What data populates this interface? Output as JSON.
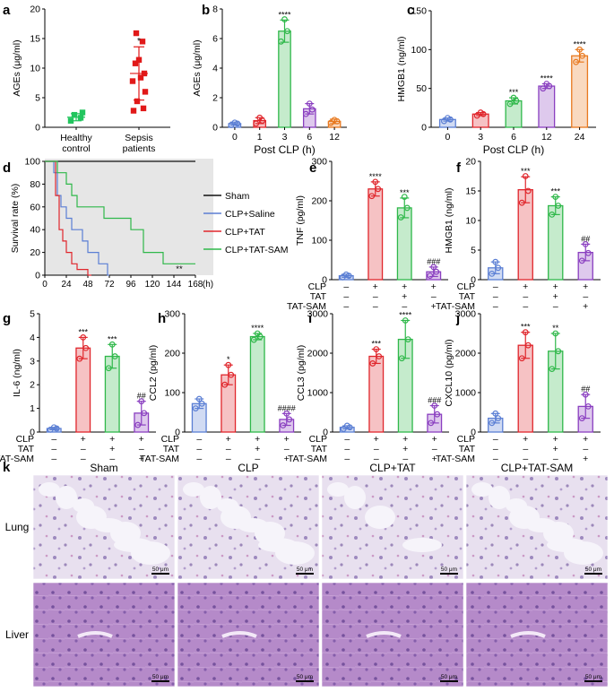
{
  "colors": {
    "blue": "#5b7fd4",
    "red": "#e0262c",
    "green": "#2fb84a",
    "purple": "#8a3fc0",
    "orange": "#e8791f",
    "green_scatter": "#22c55e",
    "red_scatter": "#e11919",
    "gray_panel": "#e6e6e6",
    "black": "#111111"
  },
  "chart_data": [
    {
      "id": "a",
      "panel_label": "a",
      "type": "scatter",
      "ylabel": "AGEs (μg/ml)",
      "ylim": [
        0,
        20
      ],
      "yticks": [
        "0",
        "5",
        "10",
        "15",
        "20"
      ],
      "categories": [
        "Healthy control",
        "Sepsis patients"
      ],
      "cat_lines": [
        [
          "Healthy",
          "control"
        ],
        [
          "Sepsis",
          "patients"
        ]
      ],
      "series": [
        {
          "name": "Healthy control",
          "color_key": "green_scatter",
          "marker": "square",
          "points": [
            1.1,
            1.6,
            2.1,
            2.5
          ],
          "mean": 1.7,
          "sd": 0.6,
          "sig": ""
        },
        {
          "name": "Sepsis patients",
          "color_key": "red_scatter",
          "marker": "square",
          "points": [
            2.8,
            3.2,
            4.4,
            6.0,
            7.8,
            8.4,
            9.1,
            10.8,
            11.4,
            14.5,
            15.9
          ],
          "mean": 9.1,
          "sd": 4.5,
          "sig": "*"
        }
      ]
    },
    {
      "id": "b",
      "panel_label": "b",
      "type": "bar",
      "ylabel": "AGEs (μg/ml)",
      "xlabel": "Post CLP (h)",
      "ylim": [
        0,
        8
      ],
      "yticks": [
        "0",
        "2",
        "4",
        "6",
        "8"
      ],
      "categories": [
        "0",
        "1",
        "3",
        "6",
        "12"
      ],
      "series": [
        {
          "name": "0",
          "value": 0.25,
          "err": 0.1,
          "color_key": "blue",
          "points": [
            0.15,
            0.25,
            0.32
          ],
          "sig": ""
        },
        {
          "name": "1",
          "value": 0.45,
          "err": 0.2,
          "color_key": "red",
          "points": [
            0.25,
            0.45,
            0.65
          ],
          "sig": ""
        },
        {
          "name": "3",
          "value": 6.5,
          "err": 0.75,
          "color_key": "green",
          "points": [
            5.8,
            6.5,
            7.3
          ],
          "sig": "****"
        },
        {
          "name": "6",
          "value": 1.25,
          "err": 0.35,
          "color_key": "purple",
          "points": [
            0.9,
            1.2,
            1.6
          ],
          "sig": ""
        },
        {
          "name": "12",
          "value": 0.4,
          "err": 0.15,
          "color_key": "orange",
          "points": [
            0.3,
            0.4,
            0.5
          ],
          "sig": ""
        }
      ]
    },
    {
      "id": "c",
      "panel_label": "c",
      "type": "bar",
      "ylabel": "HMGB1 (ng/ml)",
      "xlabel": "Post CLP (h)",
      "ylim": [
        0,
        150
      ],
      "yticks": [
        "0",
        "50",
        "100",
        "150"
      ],
      "categories": [
        "0",
        "3",
        "6",
        "12",
        "24"
      ],
      "series": [
        {
          "name": "0",
          "value": 10,
          "err": 2,
          "color_key": "blue",
          "points": [
            8,
            10,
            12
          ],
          "sig": ""
        },
        {
          "name": "3",
          "value": 17,
          "err": 2,
          "color_key": "red",
          "points": [
            15,
            17,
            19
          ],
          "sig": ""
        },
        {
          "name": "6",
          "value": 34,
          "err": 4,
          "color_key": "green",
          "points": [
            30,
            34,
            38
          ],
          "sig": "***"
        },
        {
          "name": "12",
          "value": 53,
          "err": 3,
          "color_key": "purple",
          "points": [
            50,
            53,
            56
          ],
          "sig": "****"
        },
        {
          "name": "24",
          "value": 92,
          "err": 8,
          "color_key": "orange",
          "points": [
            84,
            92,
            100
          ],
          "sig": "****"
        }
      ]
    },
    {
      "id": "d",
      "panel_label": "d",
      "type": "line",
      "ylabel": "Survival rate (%)",
      "xlabel_unit": "(h)",
      "xlim": [
        0,
        168
      ],
      "ylim": [
        0,
        100
      ],
      "xticks": [
        "0",
        "24",
        "48",
        "72",
        "96",
        "120",
        "144",
        "168"
      ],
      "yticks": [
        "0",
        "20",
        "40",
        "60",
        "80",
        "100"
      ],
      "series": [
        {
          "name": "Sham",
          "color_key": "black",
          "steps": [
            [
              0,
              100
            ],
            [
              168,
              100
            ]
          ]
        },
        {
          "name": "CLP+Saline",
          "color_key": "blue",
          "steps": [
            [
              0,
              100
            ],
            [
              10,
              100
            ],
            [
              10,
              90
            ],
            [
              14,
              90
            ],
            [
              14,
              70
            ],
            [
              18,
              70
            ],
            [
              18,
              60
            ],
            [
              24,
              60
            ],
            [
              24,
              50
            ],
            [
              30,
              50
            ],
            [
              30,
              40
            ],
            [
              42,
              40
            ],
            [
              42,
              30
            ],
            [
              48,
              30
            ],
            [
              48,
              20
            ],
            [
              60,
              20
            ],
            [
              60,
              10
            ],
            [
              70,
              10
            ],
            [
              70,
              0
            ],
            [
              72,
              0
            ]
          ]
        },
        {
          "name": "CLP+TAT",
          "color_key": "red",
          "steps": [
            [
              0,
              100
            ],
            [
              12,
              100
            ],
            [
              12,
              70
            ],
            [
              16,
              70
            ],
            [
              16,
              40
            ],
            [
              20,
              40
            ],
            [
              20,
              30
            ],
            [
              24,
              30
            ],
            [
              24,
              20
            ],
            [
              30,
              20
            ],
            [
              30,
              10
            ],
            [
              36,
              10
            ],
            [
              36,
              5
            ],
            [
              48,
              5
            ],
            [
              48,
              0
            ],
            [
              52,
              0
            ]
          ]
        },
        {
          "name": "CLP+TAT-SAM",
          "color_key": "green",
          "steps": [
            [
              0,
              100
            ],
            [
              14,
              100
            ],
            [
              14,
              90
            ],
            [
              24,
              90
            ],
            [
              24,
              80
            ],
            [
              30,
              80
            ],
            [
              30,
              70
            ],
            [
              36,
              70
            ],
            [
              36,
              60
            ],
            [
              66,
              60
            ],
            [
              66,
              50
            ],
            [
              96,
              50
            ],
            [
              96,
              40
            ],
            [
              110,
              40
            ],
            [
              110,
              20
            ],
            [
              132,
              20
            ],
            [
              132,
              10
            ],
            [
              168,
              10
            ]
          ]
        }
      ],
      "annotation": "**"
    },
    {
      "id": "e",
      "panel_label": "e",
      "type": "bar",
      "ylabel": "TNF (pg/ml)",
      "ylim": [
        0,
        300
      ],
      "yticks": [
        "0",
        "100",
        "200",
        "300"
      ],
      "series": [
        {
          "value": 10,
          "err": 4,
          "color_key": "blue",
          "points": [
            6,
            10,
            13
          ],
          "sig": ""
        },
        {
          "value": 230,
          "err": 18,
          "color_key": "red",
          "points": [
            212,
            230,
            248
          ],
          "sig": "****"
        },
        {
          "value": 182,
          "err": 25,
          "color_key": "green",
          "points": [
            158,
            182,
            210
          ],
          "sig": "***"
        },
        {
          "value": 20,
          "err": 12,
          "color_key": "purple",
          "points": [
            10,
            20,
            32
          ],
          "sig": "###"
        }
      ]
    },
    {
      "id": "f",
      "panel_label": "f",
      "type": "bar",
      "ylabel": "HMGB1 (ng/ml)",
      "ylim": [
        0,
        20
      ],
      "yticks": [
        "0",
        "5",
        "10",
        "15",
        "20"
      ],
      "series": [
        {
          "value": 2,
          "err": 1,
          "color_key": "blue",
          "points": [
            1,
            2,
            3
          ],
          "sig": ""
        },
        {
          "value": 15.2,
          "err": 2.2,
          "color_key": "red",
          "points": [
            13,
            15,
            17.5
          ],
          "sig": "***"
        },
        {
          "value": 12.5,
          "err": 1.5,
          "color_key": "green",
          "points": [
            11,
            12.5,
            14
          ],
          "sig": "***"
        },
        {
          "value": 4.6,
          "err": 1.4,
          "color_key": "purple",
          "points": [
            3.2,
            4.5,
            6
          ],
          "sig": "##"
        }
      ]
    },
    {
      "id": "g",
      "panel_label": "g",
      "type": "bar",
      "ylabel": "IL-6 (ng/ml)",
      "ylim": [
        0,
        5
      ],
      "yticks": [
        "0",
        "1",
        "2",
        "3",
        "4",
        "5"
      ],
      "series": [
        {
          "value": 0.15,
          "err": 0.05,
          "color_key": "blue",
          "points": [
            0.1,
            0.15,
            0.2
          ],
          "sig": ""
        },
        {
          "value": 3.55,
          "err": 0.45,
          "color_key": "red",
          "points": [
            3.1,
            3.55,
            4.0
          ],
          "sig": "***"
        },
        {
          "value": 3.2,
          "err": 0.5,
          "color_key": "green",
          "points": [
            2.7,
            3.2,
            3.7
          ],
          "sig": "***"
        },
        {
          "value": 0.8,
          "err": 0.5,
          "color_key": "purple",
          "points": [
            0.3,
            0.8,
            1.3
          ],
          "sig": "##"
        }
      ]
    },
    {
      "id": "h",
      "panel_label": "h",
      "type": "bar",
      "ylabel": "CCL2 (pg/ml)",
      "ylim": [
        0,
        300
      ],
      "yticks": [
        "0",
        "100",
        "200",
        "300"
      ],
      "series": [
        {
          "value": 72,
          "err": 12,
          "color_key": "blue",
          "points": [
            60,
            72,
            84
          ],
          "sig": ""
        },
        {
          "value": 145,
          "err": 25,
          "color_key": "red",
          "points": [
            120,
            145,
            170
          ],
          "sig": "*"
        },
        {
          "value": 242,
          "err": 8,
          "color_key": "green",
          "points": [
            234,
            242,
            250
          ],
          "sig": "****"
        },
        {
          "value": 32,
          "err": 15,
          "color_key": "purple",
          "points": [
            17,
            32,
            47
          ],
          "sig": "####"
        }
      ]
    },
    {
      "id": "i",
      "panel_label": "i",
      "type": "bar",
      "ylabel": "CCL3 (pg/ml)",
      "ylim": [
        0,
        3000
      ],
      "yticks": [
        "0",
        "1000",
        "2000",
        "3000"
      ],
      "series": [
        {
          "value": 120,
          "err": 40,
          "color_key": "blue",
          "points": [
            80,
            120,
            160
          ],
          "sig": ""
        },
        {
          "value": 1920,
          "err": 180,
          "color_key": "red",
          "points": [
            1740,
            1920,
            2100
          ],
          "sig": "***"
        },
        {
          "value": 2350,
          "err": 480,
          "color_key": "green",
          "points": [
            1870,
            2350,
            2830
          ],
          "sig": "****"
        },
        {
          "value": 450,
          "err": 220,
          "color_key": "purple",
          "points": [
            230,
            450,
            670
          ],
          "sig": "###"
        }
      ]
    },
    {
      "id": "j",
      "panel_label": "j",
      "type": "bar",
      "ylabel": "CXCL10 (pg/ml)",
      "ylim": [
        0,
        3000
      ],
      "yticks": [
        "0",
        "1000",
        "2000",
        "3000"
      ],
      "series": [
        {
          "value": 350,
          "err": 120,
          "color_key": "blue",
          "points": [
            230,
            350,
            470
          ],
          "sig": ""
        },
        {
          "value": 2200,
          "err": 330,
          "color_key": "red",
          "points": [
            1870,
            2200,
            2530
          ],
          "sig": "***"
        },
        {
          "value": 2050,
          "err": 450,
          "color_key": "green",
          "points": [
            1600,
            2050,
            2500
          ],
          "sig": "**"
        },
        {
          "value": 650,
          "err": 300,
          "color_key": "purple",
          "points": [
            350,
            650,
            950
          ],
          "sig": "##"
        }
      ]
    }
  ],
  "treatment_table": {
    "rows": [
      {
        "label": "CLP",
        "signs": [
          "–",
          "+",
          "+",
          "+"
        ]
      },
      {
        "label": "TAT",
        "signs": [
          "–",
          "–",
          "+",
          "–"
        ]
      },
      {
        "label": "TAT-SAM",
        "signs": [
          "–",
          "–",
          "–",
          "+"
        ]
      }
    ]
  },
  "histology": {
    "panel_label": "k",
    "columns": [
      "Sham",
      "CLP",
      "CLP+TAT",
      "CLP+TAT-SAM"
    ],
    "rows": [
      "Lung",
      "Liver"
    ],
    "scale_bar": "50 μm"
  }
}
